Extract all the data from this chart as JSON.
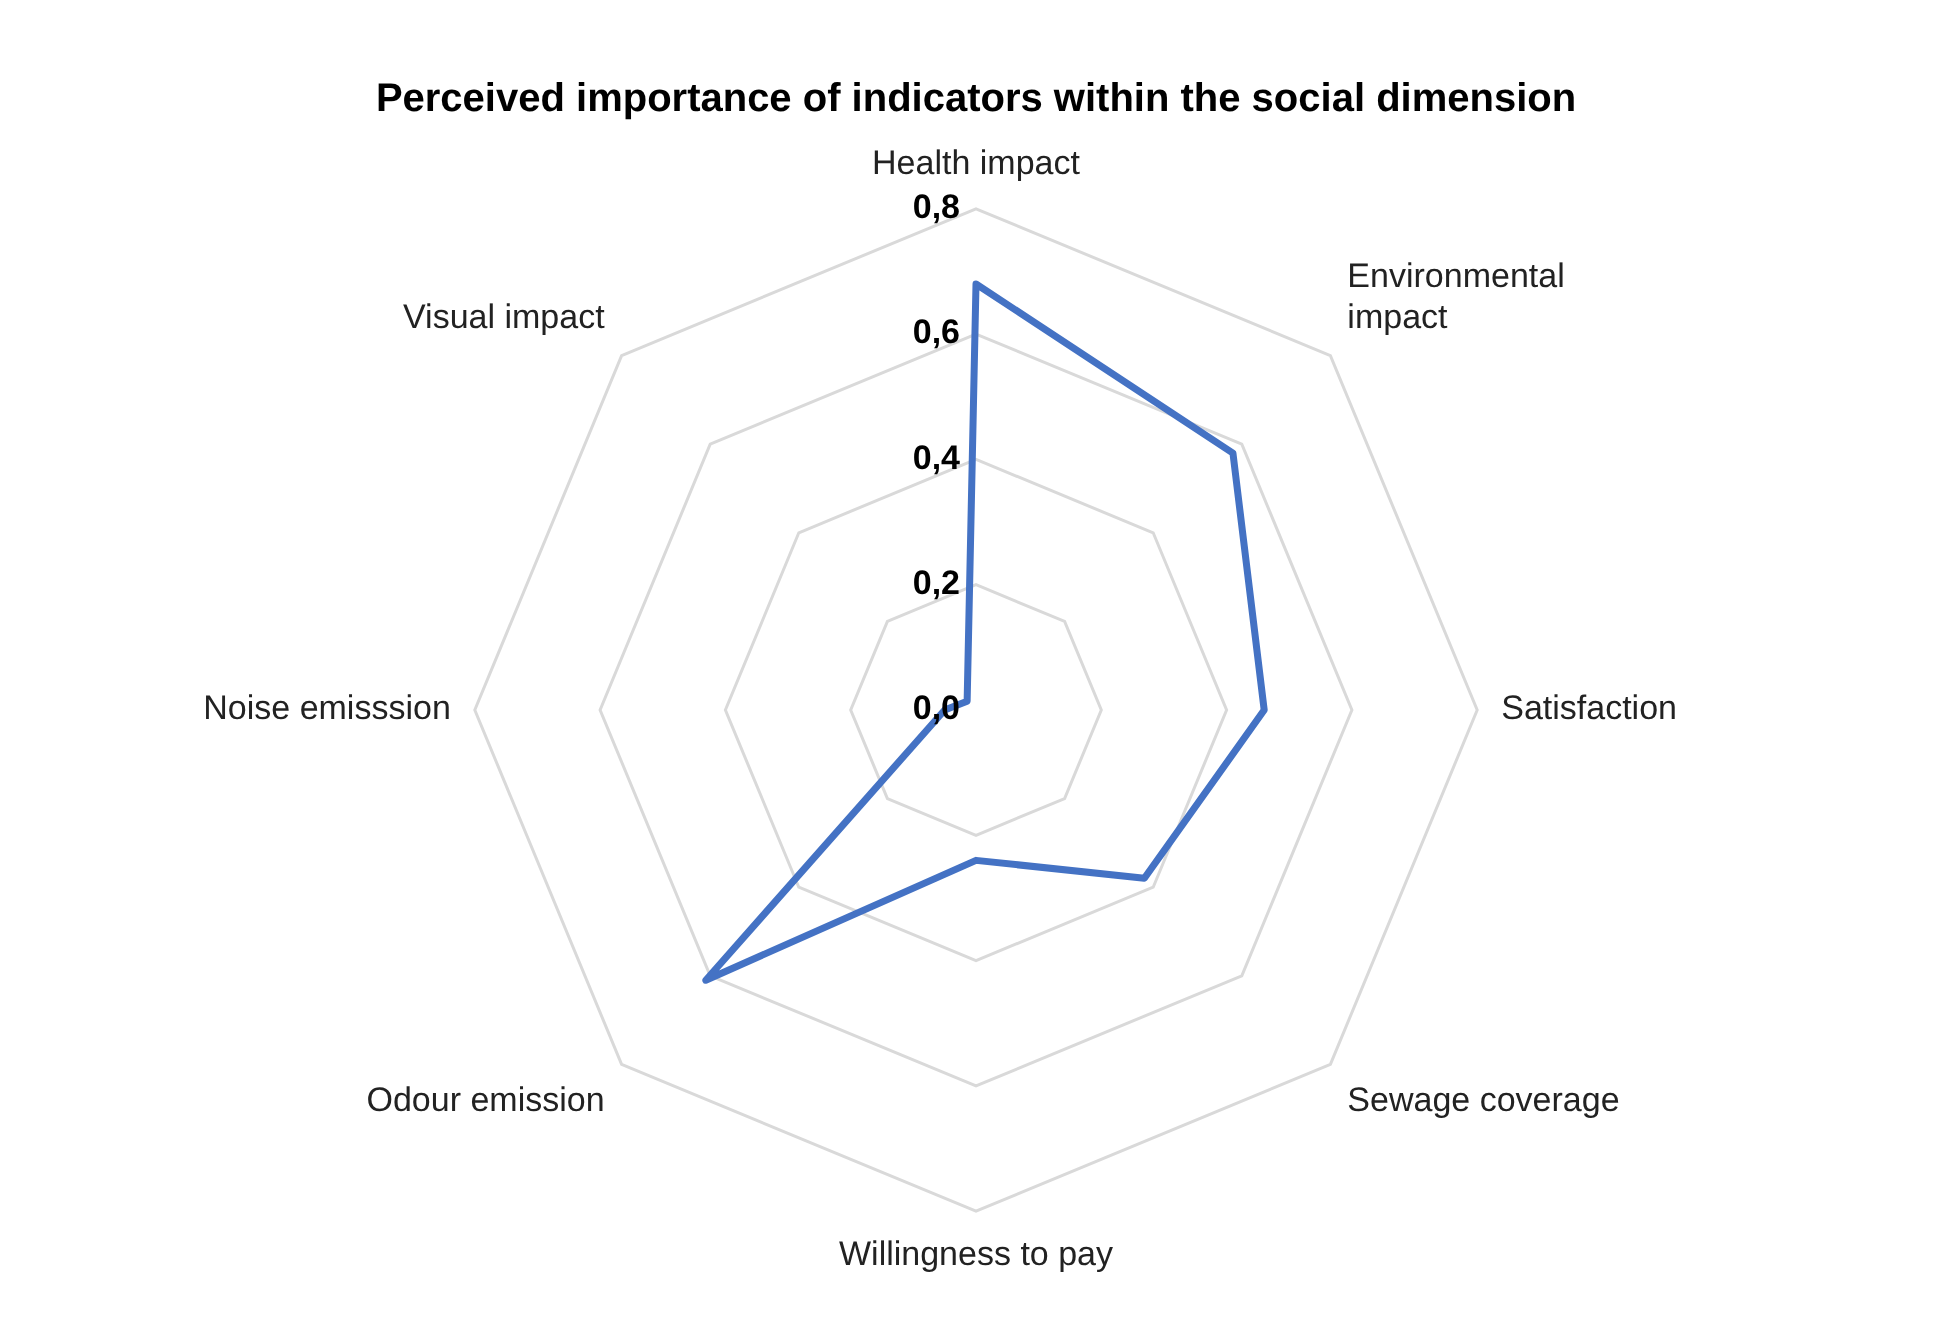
{
  "chart_data": {
    "type": "radar",
    "title": "Perceived importance of indicators within the social dimension",
    "categories": [
      "Health impact",
      "Environmental impact",
      "Satisfaction",
      "Sewage coverage",
      "Willingness to pay",
      "Odour emission",
      "Noise emisssion",
      "Visual impact"
    ],
    "series": [
      {
        "color": "#4472c4",
        "values": [
          0.68,
          0.58,
          0.46,
          0.38,
          0.24,
          0.61,
          0.05,
          0.02
        ]
      }
    ],
    "ylim": [
      0,
      0.8
    ],
    "yticks": [
      {
        "value": 0,
        "label": "0,0"
      },
      {
        "value": 0.2,
        "label": "0,2"
      },
      {
        "value": 0.4,
        "label": "0,4"
      },
      {
        "value": 0.6,
        "label": "0,6"
      },
      {
        "value": 0.8,
        "label": "0,8"
      }
    ],
    "grid": true,
    "marker": "none",
    "legend": false
  }
}
